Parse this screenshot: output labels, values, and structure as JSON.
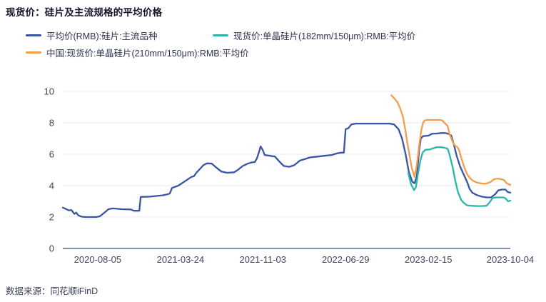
{
  "title": "现货价：硅片及主流规格的平均价格",
  "source": "数据来源：同花顺iFinD",
  "colors": {
    "mainstream": "#3a53a4",
    "wafer182": "#2ab7a9",
    "wafer210": "#f49d4e",
    "axis_line": "#8593b0",
    "grid_line": "#e9e9f0",
    "tick_text": "#3f455f"
  },
  "legend": [
    {
      "label": "平均价(RMB):硅片:主流品种",
      "color": "#3a53a4"
    },
    {
      "label": "现货价:单晶硅片(182mm/150μm):RMB:平均价",
      "color": "#2ab7a9"
    },
    {
      "label": "中国:现货价:单晶硅片(210mm/150μm):RMB:平均价",
      "color": "#f49d4e"
    }
  ],
  "chart_data": {
    "type": "line",
    "title": "现货价：硅片及主流规格的平均价格",
    "xlabel": "",
    "ylabel": "",
    "ylim": [
      0,
      10
    ],
    "y_ticks": [
      0,
      2,
      4,
      6,
      8,
      10
    ],
    "grid": true,
    "legend_position": "top",
    "x_ticks": [
      {
        "label": "2020-08-05",
        "pos": 0.078
      },
      {
        "label": "2021-03-24",
        "pos": 0.263
      },
      {
        "label": "2021-11-03",
        "pos": 0.447
      },
      {
        "label": "2022-06-29",
        "pos": 0.632
      },
      {
        "label": "2023-02-15",
        "pos": 0.817
      },
      {
        "label": "2023-10-04",
        "pos": 1.0
      }
    ],
    "series": [
      {
        "name": "平均价(RMB):硅片:主流品种",
        "color": "#3a53a4",
        "points": [
          [
            0.0,
            2.6
          ],
          [
            0.008,
            2.5
          ],
          [
            0.014,
            2.42
          ],
          [
            0.019,
            2.45
          ],
          [
            0.026,
            2.2
          ],
          [
            0.03,
            2.28
          ],
          [
            0.035,
            2.1
          ],
          [
            0.043,
            2.02
          ],
          [
            0.051,
            2.0
          ],
          [
            0.075,
            2.0
          ],
          [
            0.083,
            2.05
          ],
          [
            0.094,
            2.3
          ],
          [
            0.102,
            2.5
          ],
          [
            0.112,
            2.55
          ],
          [
            0.131,
            2.5
          ],
          [
            0.152,
            2.48
          ],
          [
            0.159,
            2.4
          ],
          [
            0.171,
            2.4
          ],
          [
            0.174,
            3.28
          ],
          [
            0.195,
            3.3
          ],
          [
            0.223,
            3.38
          ],
          [
            0.234,
            3.45
          ],
          [
            0.239,
            3.5
          ],
          [
            0.244,
            3.85
          ],
          [
            0.258,
            4.0
          ],
          [
            0.274,
            4.3
          ],
          [
            0.287,
            4.55
          ],
          [
            0.293,
            4.6
          ],
          [
            0.298,
            4.8
          ],
          [
            0.306,
            5.05
          ],
          [
            0.314,
            5.3
          ],
          [
            0.322,
            5.42
          ],
          [
            0.333,
            5.4
          ],
          [
            0.343,
            5.15
          ],
          [
            0.354,
            4.9
          ],
          [
            0.367,
            4.82
          ],
          [
            0.383,
            4.85
          ],
          [
            0.391,
            5.0
          ],
          [
            0.402,
            5.25
          ],
          [
            0.413,
            5.4
          ],
          [
            0.423,
            5.48
          ],
          [
            0.429,
            5.5
          ],
          [
            0.434,
            5.75
          ],
          [
            0.439,
            6.2
          ],
          [
            0.442,
            6.5
          ],
          [
            0.447,
            6.25
          ],
          [
            0.451,
            5.95
          ],
          [
            0.463,
            5.9
          ],
          [
            0.474,
            5.85
          ],
          [
            0.485,
            5.5
          ],
          [
            0.494,
            5.25
          ],
          [
            0.506,
            5.2
          ],
          [
            0.517,
            5.3
          ],
          [
            0.53,
            5.6
          ],
          [
            0.542,
            5.7
          ],
          [
            0.553,
            5.8
          ],
          [
            0.569,
            5.85
          ],
          [
            0.585,
            5.9
          ],
          [
            0.601,
            5.95
          ],
          [
            0.612,
            6.05
          ],
          [
            0.622,
            6.1
          ],
          [
            0.628,
            6.1
          ],
          [
            0.632,
            7.6
          ],
          [
            0.638,
            7.65
          ],
          [
            0.645,
            7.9
          ],
          [
            0.655,
            7.95
          ],
          [
            0.729,
            7.95
          ],
          [
            0.74,
            7.9
          ],
          [
            0.75,
            7.6
          ],
          [
            0.758,
            7.0
          ],
          [
            0.766,
            6.0
          ],
          [
            0.773,
            4.9
          ],
          [
            0.781,
            4.25
          ],
          [
            0.786,
            4.15
          ],
          [
            0.791,
            4.6
          ],
          [
            0.796,
            6.2
          ],
          [
            0.8,
            7.0
          ],
          [
            0.805,
            7.15
          ],
          [
            0.817,
            7.18
          ],
          [
            0.825,
            7.3
          ],
          [
            0.836,
            7.32
          ],
          [
            0.845,
            7.35
          ],
          [
            0.855,
            7.35
          ],
          [
            0.861,
            7.3
          ],
          [
            0.868,
            7.2
          ],
          [
            0.874,
            6.6
          ],
          [
            0.88,
            5.9
          ],
          [
            0.888,
            5.2
          ],
          [
            0.896,
            4.7
          ],
          [
            0.904,
            4.2
          ],
          [
            0.909,
            3.8
          ],
          [
            0.915,
            3.55
          ],
          [
            0.925,
            3.4
          ],
          [
            0.936,
            3.3
          ],
          [
            0.947,
            3.25
          ],
          [
            0.957,
            3.25
          ],
          [
            0.966,
            3.45
          ],
          [
            0.973,
            3.7
          ],
          [
            0.981,
            3.75
          ],
          [
            0.989,
            3.75
          ],
          [
            0.994,
            3.6
          ],
          [
            1.0,
            3.55
          ]
        ]
      },
      {
        "name": "现货价:单晶硅片(182mm/150μm):RMB:平均价",
        "color": "#2ab7a9",
        "points": [
          [
            0.772,
            4.8
          ],
          [
            0.778,
            4.1
          ],
          [
            0.785,
            3.72
          ],
          [
            0.789,
            3.9
          ],
          [
            0.794,
            4.8
          ],
          [
            0.799,
            5.6
          ],
          [
            0.804,
            6.1
          ],
          [
            0.81,
            6.28
          ],
          [
            0.82,
            6.3
          ],
          [
            0.828,
            6.38
          ],
          [
            0.836,
            6.45
          ],
          [
            0.844,
            6.45
          ],
          [
            0.852,
            6.42
          ],
          [
            0.86,
            6.35
          ],
          [
            0.864,
            6.0
          ],
          [
            0.871,
            5.2
          ],
          [
            0.877,
            4.3
          ],
          [
            0.883,
            3.6
          ],
          [
            0.89,
            3.1
          ],
          [
            0.896,
            2.9
          ],
          [
            0.903,
            2.75
          ],
          [
            0.912,
            2.72
          ],
          [
            0.925,
            2.7
          ],
          [
            0.936,
            2.7
          ],
          [
            0.947,
            2.72
          ],
          [
            0.954,
            2.95
          ],
          [
            0.96,
            3.2
          ],
          [
            0.968,
            3.25
          ],
          [
            0.984,
            3.25
          ],
          [
            0.989,
            3.2
          ],
          [
            0.995,
            3.0
          ],
          [
            1.0,
            3.05
          ]
        ]
      },
      {
        "name": "中国:现货价:单晶硅片(210mm/150μm):RMB:平均价",
        "color": "#f49d4e",
        "points": [
          [
            0.734,
            9.75
          ],
          [
            0.741,
            9.55
          ],
          [
            0.748,
            9.3
          ],
          [
            0.754,
            8.9
          ],
          [
            0.76,
            8.4
          ],
          [
            0.765,
            7.6
          ],
          [
            0.77,
            6.7
          ],
          [
            0.775,
            5.9
          ],
          [
            0.78,
            5.1
          ],
          [
            0.786,
            4.55
          ],
          [
            0.791,
            5.3
          ],
          [
            0.796,
            6.5
          ],
          [
            0.801,
            7.5
          ],
          [
            0.805,
            8.0
          ],
          [
            0.809,
            8.15
          ],
          [
            0.813,
            8.18
          ],
          [
            0.842,
            8.18
          ],
          [
            0.848,
            8.15
          ],
          [
            0.853,
            8.0
          ],
          [
            0.86,
            7.8
          ],
          [
            0.864,
            7.3
          ],
          [
            0.871,
            6.8
          ],
          [
            0.876,
            6.55
          ],
          [
            0.88,
            6.5
          ],
          [
            0.885,
            6.3
          ],
          [
            0.891,
            5.7
          ],
          [
            0.898,
            5.1
          ],
          [
            0.904,
            4.7
          ],
          [
            0.911,
            4.45
          ],
          [
            0.917,
            4.3
          ],
          [
            0.925,
            4.2
          ],
          [
            0.933,
            4.15
          ],
          [
            0.941,
            4.12
          ],
          [
            0.949,
            4.15
          ],
          [
            0.957,
            4.25
          ],
          [
            0.963,
            4.4
          ],
          [
            0.971,
            4.45
          ],
          [
            0.979,
            4.42
          ],
          [
            0.986,
            4.35
          ],
          [
            0.992,
            4.15
          ],
          [
            1.0,
            4.05
          ]
        ]
      }
    ]
  }
}
